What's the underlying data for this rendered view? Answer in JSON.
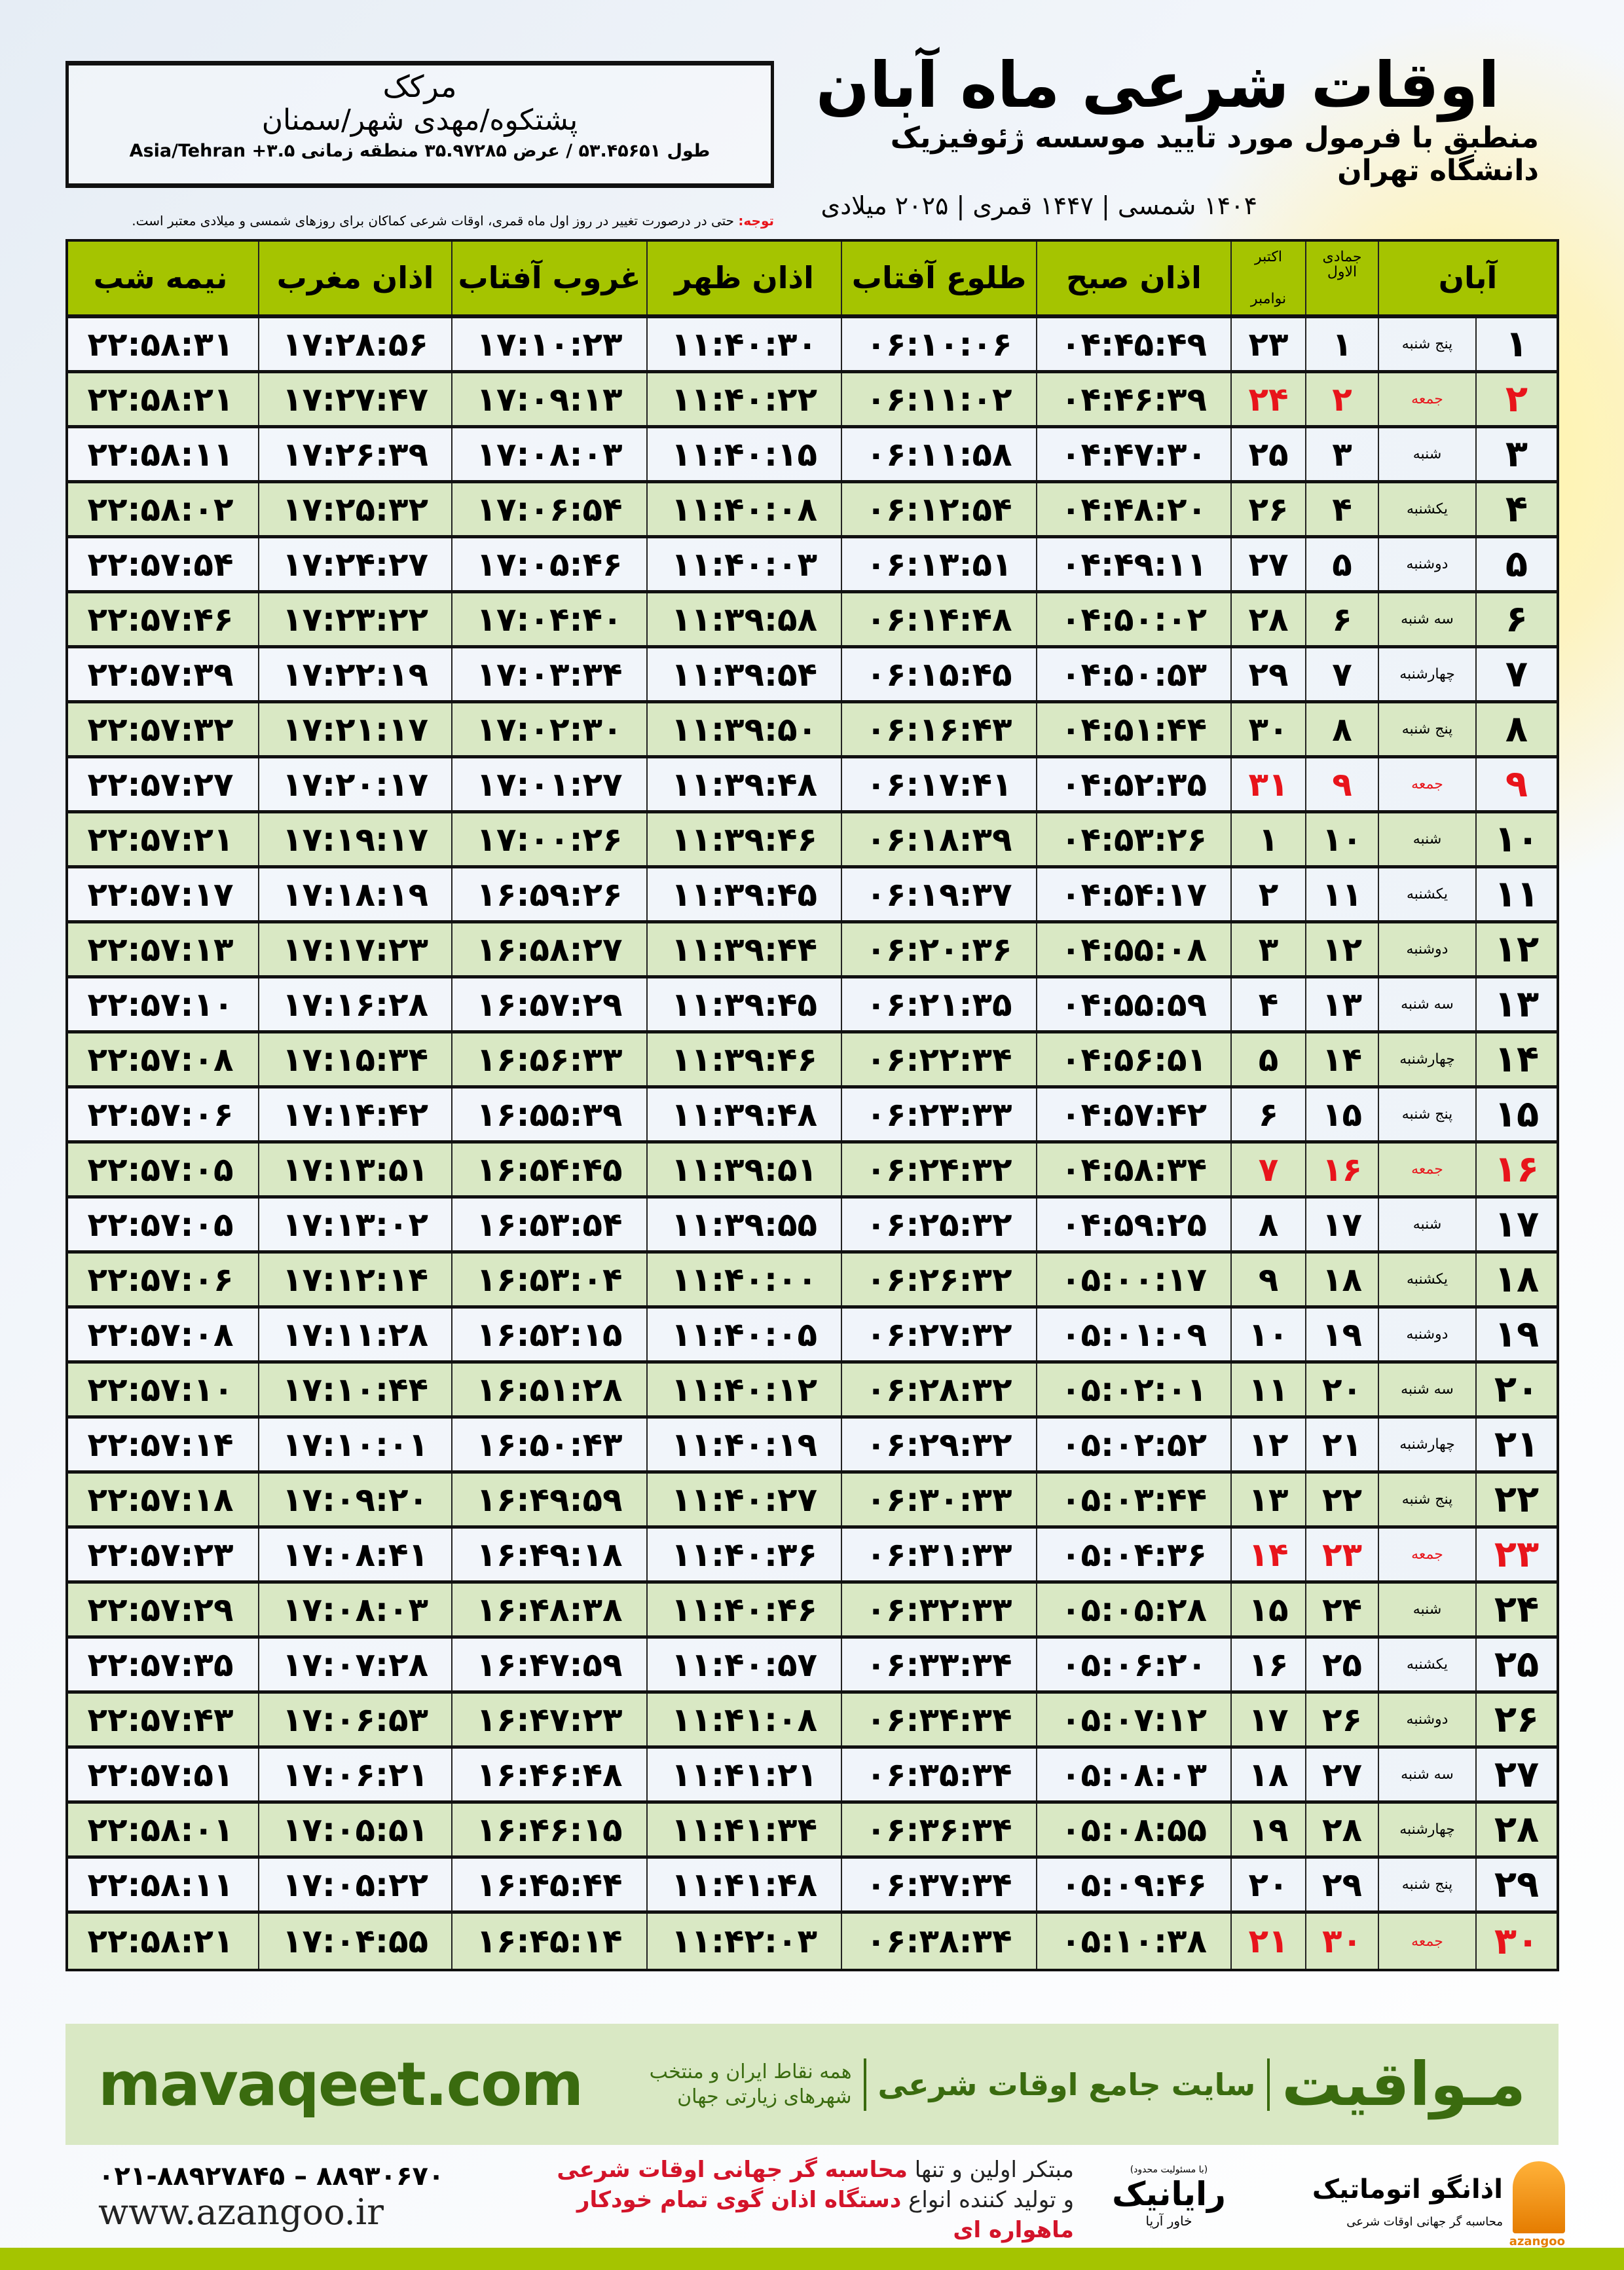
{
  "location": {
    "name": "مرکک",
    "path": "پشتکوه/مهدی شهر/سمنان",
    "coords": "طول ۵۳.۴۵۶۵۱ / عرض ۳۵.۹۷۲۸۵ منطقه زمانی ۳.۵+ Asia/Tehran"
  },
  "header": {
    "title": "اوقات شرعی ماه آبان",
    "subtitle": "منطبق با فرمول مورد تایید موسسه ژئوفیزیک دانشگاه تهران",
    "dates": "۱۴۰۴ شمسی | ۱۴۴۷ قمری | ۲۰۲۵ میلادی"
  },
  "note": {
    "label": "توجه:",
    "text": " حتی در درصورت تغییر در روز اول ماه قمری، اوقات شرعی کماکان برای روزهای شمسی و میلادی معتبر است."
  },
  "table": {
    "headers": {
      "month": "آبان",
      "hijri_month": "جمادی الاول",
      "greg_month_1": "اکتبر",
      "greg_month_2": "نوامبر",
      "fajr": "اذان صبح",
      "sunrise": "طلوع آفتاب",
      "dhuhr": "اذان ظهر",
      "sunset": "غروب آفتاب",
      "maghrib": "اذان مغرب",
      "midnight": "نیمه شب"
    },
    "holiday_weekday": "جمعه",
    "holiday_color": "#e8141b",
    "header_color": "#a5c400",
    "alt_row_color": "#d9e8c4",
    "columns": [
      "day",
      "weekday",
      "hijri",
      "gregorian",
      "fajr",
      "sunrise",
      "dhuhr",
      "sunset",
      "maghrib",
      "midnight"
    ],
    "rows": [
      [
        "۱",
        "پنج شنبه",
        "۱",
        "۲۳",
        "۰۴:۴۵:۴۹",
        "۰۶:۱۰:۰۶",
        "۱۱:۴۰:۳۰",
        "۱۷:۱۰:۲۳",
        "۱۷:۲۸:۵۶",
        "۲۲:۵۸:۳۱"
      ],
      [
        "۲",
        "جمعه",
        "۲",
        "۲۴",
        "۰۴:۴۶:۳۹",
        "۰۶:۱۱:۰۲",
        "۱۱:۴۰:۲۲",
        "۱۷:۰۹:۱۳",
        "۱۷:۲۷:۴۷",
        "۲۲:۵۸:۲۱"
      ],
      [
        "۳",
        "شنبه",
        "۳",
        "۲۵",
        "۰۴:۴۷:۳۰",
        "۰۶:۱۱:۵۸",
        "۱۱:۴۰:۱۵",
        "۱۷:۰۸:۰۳",
        "۱۷:۲۶:۳۹",
        "۲۲:۵۸:۱۱"
      ],
      [
        "۴",
        "یکشنبه",
        "۴",
        "۲۶",
        "۰۴:۴۸:۲۰",
        "۰۶:۱۲:۵۴",
        "۱۱:۴۰:۰۸",
        "۱۷:۰۶:۵۴",
        "۱۷:۲۵:۳۲",
        "۲۲:۵۸:۰۲"
      ],
      [
        "۵",
        "دوشنبه",
        "۵",
        "۲۷",
        "۰۴:۴۹:۱۱",
        "۰۶:۱۳:۵۱",
        "۱۱:۴۰:۰۳",
        "۱۷:۰۵:۴۶",
        "۱۷:۲۴:۲۷",
        "۲۲:۵۷:۵۴"
      ],
      [
        "۶",
        "سه شنبه",
        "۶",
        "۲۸",
        "۰۴:۵۰:۰۲",
        "۰۶:۱۴:۴۸",
        "۱۱:۳۹:۵۸",
        "۱۷:۰۴:۴۰",
        "۱۷:۲۳:۲۲",
        "۲۲:۵۷:۴۶"
      ],
      [
        "۷",
        "چهارشنبه",
        "۷",
        "۲۹",
        "۰۴:۵۰:۵۳",
        "۰۶:۱۵:۴۵",
        "۱۱:۳۹:۵۴",
        "۱۷:۰۳:۳۴",
        "۱۷:۲۲:۱۹",
        "۲۲:۵۷:۳۹"
      ],
      [
        "۸",
        "پنج شنبه",
        "۸",
        "۳۰",
        "۰۴:۵۱:۴۴",
        "۰۶:۱۶:۴۳",
        "۱۱:۳۹:۵۰",
        "۱۷:۰۲:۳۰",
        "۱۷:۲۱:۱۷",
        "۲۲:۵۷:۳۲"
      ],
      [
        "۹",
        "جمعه",
        "۹",
        "۳۱",
        "۰۴:۵۲:۳۵",
        "۰۶:۱۷:۴۱",
        "۱۱:۳۹:۴۸",
        "۱۷:۰۱:۲۷",
        "۱۷:۲۰:۱۷",
        "۲۲:۵۷:۲۷"
      ],
      [
        "۱۰",
        "شنبه",
        "۱۰",
        "۱",
        "۰۴:۵۳:۲۶",
        "۰۶:۱۸:۳۹",
        "۱۱:۳۹:۴۶",
        "۱۷:۰۰:۲۶",
        "۱۷:۱۹:۱۷",
        "۲۲:۵۷:۲۱"
      ],
      [
        "۱۱",
        "یکشنبه",
        "۱۱",
        "۲",
        "۰۴:۵۴:۱۷",
        "۰۶:۱۹:۳۷",
        "۱۱:۳۹:۴۵",
        "۱۶:۵۹:۲۶",
        "۱۷:۱۸:۱۹",
        "۲۲:۵۷:۱۷"
      ],
      [
        "۱۲",
        "دوشنبه",
        "۱۲",
        "۳",
        "۰۴:۵۵:۰۸",
        "۰۶:۲۰:۳۶",
        "۱۱:۳۹:۴۴",
        "۱۶:۵۸:۲۷",
        "۱۷:۱۷:۲۳",
        "۲۲:۵۷:۱۳"
      ],
      [
        "۱۳",
        "سه شنبه",
        "۱۳",
        "۴",
        "۰۴:۵۵:۵۹",
        "۰۶:۲۱:۳۵",
        "۱۱:۳۹:۴۵",
        "۱۶:۵۷:۲۹",
        "۱۷:۱۶:۲۸",
        "۲۲:۵۷:۱۰"
      ],
      [
        "۱۴",
        "چهارشنبه",
        "۱۴",
        "۵",
        "۰۴:۵۶:۵۱",
        "۰۶:۲۲:۳۴",
        "۱۱:۳۹:۴۶",
        "۱۶:۵۶:۳۳",
        "۱۷:۱۵:۳۴",
        "۲۲:۵۷:۰۸"
      ],
      [
        "۱۵",
        "پنج شنبه",
        "۱۵",
        "۶",
        "۰۴:۵۷:۴۲",
        "۰۶:۲۳:۳۳",
        "۱۱:۳۹:۴۸",
        "۱۶:۵۵:۳۹",
        "۱۷:۱۴:۴۲",
        "۲۲:۵۷:۰۶"
      ],
      [
        "۱۶",
        "جمعه",
        "۱۶",
        "۷",
        "۰۴:۵۸:۳۴",
        "۰۶:۲۴:۳۲",
        "۱۱:۳۹:۵۱",
        "۱۶:۵۴:۴۵",
        "۱۷:۱۳:۵۱",
        "۲۲:۵۷:۰۵"
      ],
      [
        "۱۷",
        "شنبه",
        "۱۷",
        "۸",
        "۰۴:۵۹:۲۵",
        "۰۶:۲۵:۳۲",
        "۱۱:۳۹:۵۵",
        "۱۶:۵۳:۵۴",
        "۱۷:۱۳:۰۲",
        "۲۲:۵۷:۰۵"
      ],
      [
        "۱۸",
        "یکشنبه",
        "۱۸",
        "۹",
        "۰۵:۰۰:۱۷",
        "۰۶:۲۶:۳۲",
        "۱۱:۴۰:۰۰",
        "۱۶:۵۳:۰۴",
        "۱۷:۱۲:۱۴",
        "۲۲:۵۷:۰۶"
      ],
      [
        "۱۹",
        "دوشنبه",
        "۱۹",
        "۱۰",
        "۰۵:۰۱:۰۹",
        "۰۶:۲۷:۳۲",
        "۱۱:۴۰:۰۵",
        "۱۶:۵۲:۱۵",
        "۱۷:۱۱:۲۸",
        "۲۲:۵۷:۰۸"
      ],
      [
        "۲۰",
        "سه شنبه",
        "۲۰",
        "۱۱",
        "۰۵:۰۲:۰۱",
        "۰۶:۲۸:۳۲",
        "۱۱:۴۰:۱۲",
        "۱۶:۵۱:۲۸",
        "۱۷:۱۰:۴۴",
        "۲۲:۵۷:۱۰"
      ],
      [
        "۲۱",
        "چهارشنبه",
        "۲۱",
        "۱۲",
        "۰۵:۰۲:۵۲",
        "۰۶:۲۹:۳۲",
        "۱۱:۴۰:۱۹",
        "۱۶:۵۰:۴۳",
        "۱۷:۱۰:۰۱",
        "۲۲:۵۷:۱۴"
      ],
      [
        "۲۲",
        "پنج شنبه",
        "۲۲",
        "۱۳",
        "۰۵:۰۳:۴۴",
        "۰۶:۳۰:۳۳",
        "۱۱:۴۰:۲۷",
        "۱۶:۴۹:۵۹",
        "۱۷:۰۹:۲۰",
        "۲۲:۵۷:۱۸"
      ],
      [
        "۲۳",
        "جمعه",
        "۲۳",
        "۱۴",
        "۰۵:۰۴:۳۶",
        "۰۶:۳۱:۳۳",
        "۱۱:۴۰:۳۶",
        "۱۶:۴۹:۱۸",
        "۱۷:۰۸:۴۱",
        "۲۲:۵۷:۲۳"
      ],
      [
        "۲۴",
        "شنبه",
        "۲۴",
        "۱۵",
        "۰۵:۰۵:۲۸",
        "۰۶:۳۲:۳۳",
        "۱۱:۴۰:۴۶",
        "۱۶:۴۸:۳۸",
        "۱۷:۰۸:۰۳",
        "۲۲:۵۷:۲۹"
      ],
      [
        "۲۵",
        "یکشنبه",
        "۲۵",
        "۱۶",
        "۰۵:۰۶:۲۰",
        "۰۶:۳۳:۳۴",
        "۱۱:۴۰:۵۷",
        "۱۶:۴۷:۵۹",
        "۱۷:۰۷:۲۸",
        "۲۲:۵۷:۳۵"
      ],
      [
        "۲۶",
        "دوشنبه",
        "۲۶",
        "۱۷",
        "۰۵:۰۷:۱۲",
        "۰۶:۳۴:۳۴",
        "۱۱:۴۱:۰۸",
        "۱۶:۴۷:۲۳",
        "۱۷:۰۶:۵۳",
        "۲۲:۵۷:۴۳"
      ],
      [
        "۲۷",
        "سه شنبه",
        "۲۷",
        "۱۸",
        "۰۵:۰۸:۰۳",
        "۰۶:۳۵:۳۴",
        "۱۱:۴۱:۲۱",
        "۱۶:۴۶:۴۸",
        "۱۷:۰۶:۲۱",
        "۲۲:۵۷:۵۱"
      ],
      [
        "۲۸",
        "چهارشنبه",
        "۲۸",
        "۱۹",
        "۰۵:۰۸:۵۵",
        "۰۶:۳۶:۳۴",
        "۱۱:۴۱:۳۴",
        "۱۶:۴۶:۱۵",
        "۱۷:۰۵:۵۱",
        "۲۲:۵۸:۰۱"
      ],
      [
        "۲۹",
        "پنج شنبه",
        "۲۹",
        "۲۰",
        "۰۵:۰۹:۴۶",
        "۰۶:۳۷:۳۴",
        "۱۱:۴۱:۴۸",
        "۱۶:۴۵:۴۴",
        "۱۷:۰۵:۲۲",
        "۲۲:۵۸:۱۱"
      ],
      [
        "۳۰",
        "جمعه",
        "۳۰",
        "۲۱",
        "۰۵:۱۰:۳۸",
        "۰۶:۳۸:۳۴",
        "۱۱:۴۲:۰۳",
        "۱۶:۴۵:۱۴",
        "۱۷:۰۴:۵۵",
        "۲۲:۵۸:۲۱"
      ]
    ]
  },
  "banner": {
    "brand": "مـواقیت",
    "tagline": "سایت جامع اوقات شرعی",
    "subline": "همه نقاط ایران و منتخب شهرهای زیارتی جهان",
    "url": "mavaqeet.com",
    "color": "#3a6b0f"
  },
  "footer": {
    "phone": "۰۲۱-۸۸۹۲۷۸۴۵ – ۸۸۹۳۰۶۷۰",
    "website": "www.azangoo.ir",
    "promo_line1_prefix": "مبتکر اولین و تنها ",
    "promo_line1_highlight": "محاسبه گر جهانی اوقات شرعی",
    "promo_line2_prefix": "و تولید کننده انواع ",
    "promo_line2_highlight": "دستگاه اذان گوی تمام خودکار ماهواره ای",
    "rayanik_name": "رایانیک",
    "rayanik_sub": "(با مسئولیت محدود)",
    "rayanik_khavar": "خاور آریا",
    "azangoo_name": "اذانگو اتوماتیک",
    "azangoo_latin": "azangoo",
    "azangoo_sub": "محاسبه گر جهانی اوقات شرعی"
  }
}
